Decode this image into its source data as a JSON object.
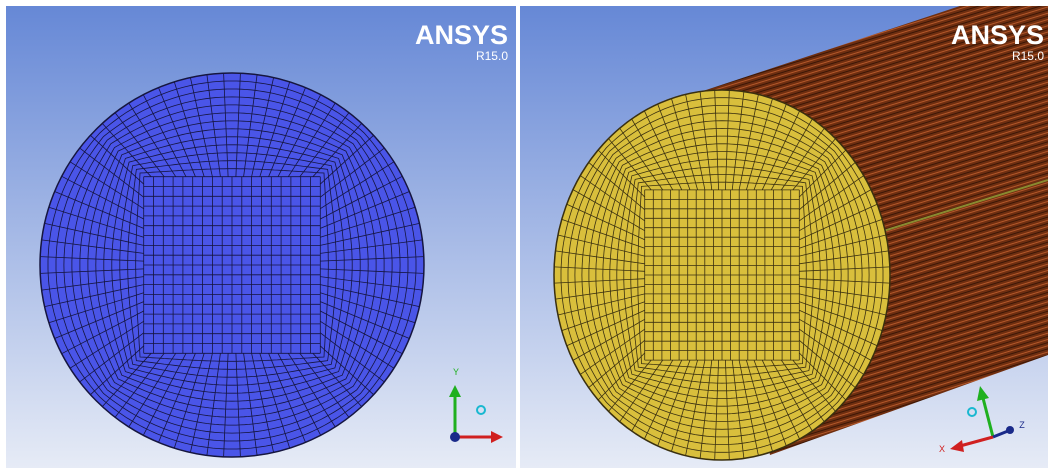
{
  "panels": [
    {
      "logo": "ANSYS",
      "version": "R15.0",
      "axes": [
        "Y"
      ]
    },
    {
      "logo": "ANSYS",
      "version": "R15.0",
      "axes": [
        "Z",
        "X"
      ]
    }
  ]
}
